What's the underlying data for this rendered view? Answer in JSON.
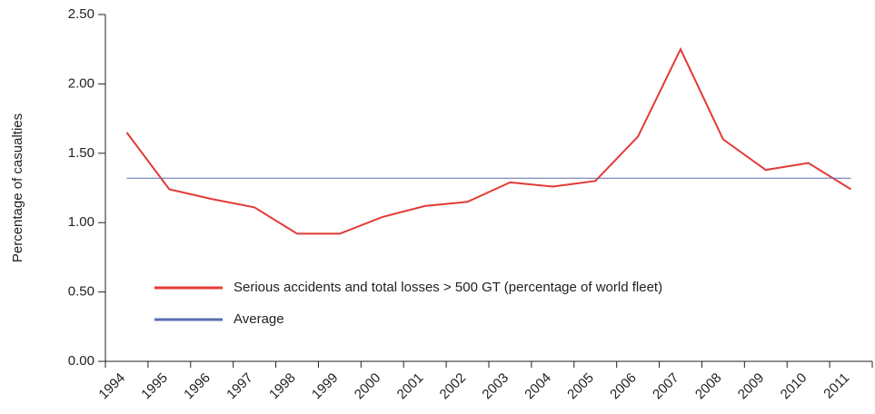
{
  "chart_data": {
    "type": "line",
    "y_label": "Percentage of casualties",
    "categories": [
      "1994",
      "1995",
      "1996",
      "1997",
      "1998",
      "1999",
      "2000",
      "2001",
      "2002",
      "2003",
      "2004",
      "2005",
      "2006",
      "2007",
      "2008",
      "2009",
      "2010",
      "2011"
    ],
    "series": [
      {
        "name": "Serious accidents and total losses > 500 GT (percentage of world fleet)",
        "color": "#e33a36",
        "values": [
          1.65,
          1.24,
          1.17,
          1.11,
          0.92,
          0.92,
          1.04,
          1.12,
          1.15,
          1.29,
          1.26,
          1.3,
          1.62,
          2.25,
          1.6,
          1.38,
          1.43,
          1.24
        ]
      },
      {
        "name": "Average",
        "color": "#5a6fae",
        "values": [
          1.32,
          1.32,
          1.32,
          1.32,
          1.32,
          1.32,
          1.32,
          1.32,
          1.32,
          1.32,
          1.32,
          1.32,
          1.32,
          1.32,
          1.32,
          1.32,
          1.32,
          1.32
        ]
      }
    ],
    "ylim": [
      0,
      2.5
    ],
    "yticks": [
      {
        "value": 0,
        "label": "0.00"
      },
      {
        "value": 0.5,
        "label": "0.50"
      },
      {
        "value": 1,
        "label": "1.00"
      },
      {
        "value": 1.5,
        "label": "1.50"
      },
      {
        "value": 2,
        "label": "2.00"
      },
      {
        "value": 2.5,
        "label": "2.50"
      }
    ],
    "grid": false
  }
}
